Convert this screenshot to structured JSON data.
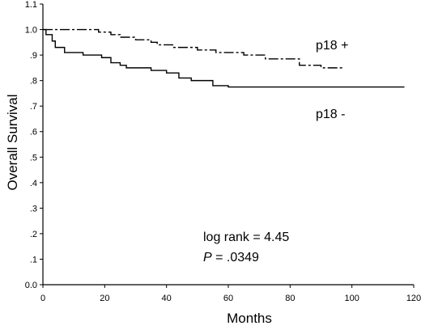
{
  "chart_data": {
    "type": "line",
    "title": "",
    "xlabel": "Months",
    "ylabel": "Overall Survival",
    "xlim": [
      0,
      120
    ],
    "ylim": [
      0.0,
      1.1
    ],
    "xticks": [
      "0",
      "20",
      "40",
      "60",
      "80",
      "100",
      "120"
    ],
    "yticks": [
      "0.0",
      ".1",
      ".2",
      ".3",
      ".4",
      ".5",
      ".6",
      ".7",
      ".8",
      ".9",
      "1.0",
      "1.1"
    ],
    "grid": false,
    "series": [
      {
        "name": "p18 +",
        "line_style": "dash-dot",
        "color": "#000000",
        "points": [
          [
            0,
            1.0
          ],
          [
            10,
            1.0
          ],
          [
            18,
            0.99
          ],
          [
            22,
            0.98
          ],
          [
            25,
            0.97
          ],
          [
            30,
            0.96
          ],
          [
            35,
            0.95
          ],
          [
            37,
            0.94
          ],
          [
            42,
            0.93
          ],
          [
            50,
            0.92
          ],
          [
            56,
            0.91
          ],
          [
            65,
            0.9
          ],
          [
            72,
            0.885
          ],
          [
            80,
            0.885
          ],
          [
            83,
            0.86
          ],
          [
            90,
            0.85
          ],
          [
            97,
            0.85
          ]
        ]
      },
      {
        "name": "p18 -",
        "line_style": "solid",
        "color": "#000000",
        "points": [
          [
            0,
            1.0
          ],
          [
            1,
            0.98
          ],
          [
            3,
            0.955
          ],
          [
            4,
            0.93
          ],
          [
            7,
            0.91
          ],
          [
            13,
            0.9
          ],
          [
            19,
            0.89
          ],
          [
            22,
            0.87
          ],
          [
            25,
            0.86
          ],
          [
            27,
            0.85
          ],
          [
            35,
            0.84
          ],
          [
            40,
            0.83
          ],
          [
            44,
            0.81
          ],
          [
            48,
            0.8
          ],
          [
            55,
            0.78
          ],
          [
            60,
            0.775
          ],
          [
            117,
            0.775
          ]
        ]
      }
    ],
    "annotations": {
      "log_rank": "log rank = 4.45",
      "p_label": "P",
      "p_value": " = .0349"
    }
  }
}
